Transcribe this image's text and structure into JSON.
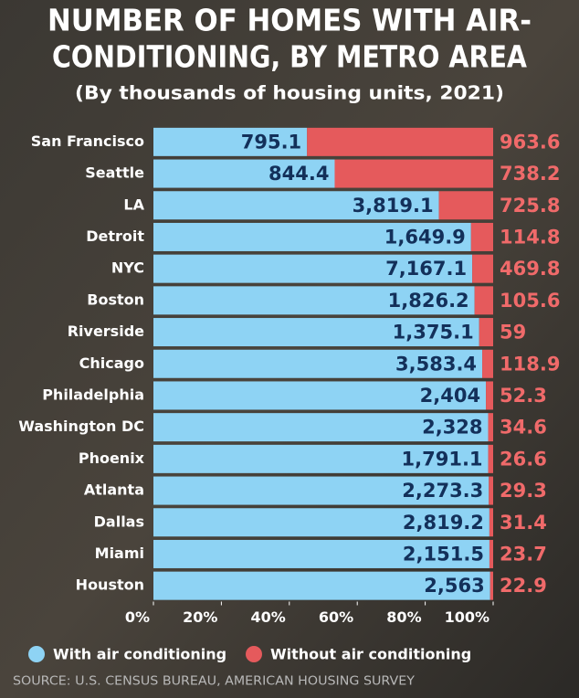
{
  "chart_data": {
    "type": "bar_100_stacked_horizontal",
    "title": [
      "NUMBER OF HOMES WITH AIR-",
      "CONDITIONING, BY METRO AREA"
    ],
    "subtitle": "(By thousands of housing units, 2021)",
    "categories": [
      "San Francisco",
      "Seattle",
      "LA",
      "Detroit",
      "NYC",
      "Boston",
      "Riverside",
      "Chicago",
      "Philadelphia",
      "Washington DC",
      "Phoenix",
      "Atlanta",
      "Dallas",
      "Miami",
      "Houston"
    ],
    "series": [
      {
        "name": "With air conditioning",
        "color": "#8ed3f4",
        "values": [
          795.1,
          844.4,
          3819.1,
          1649.9,
          7167.1,
          1826.2,
          1375.1,
          3583.4,
          2404,
          2328,
          1791.1,
          2273.3,
          2819.2,
          2151.5,
          2563
        ],
        "value_labels": [
          "795.1",
          "844.4",
          "3,819.1",
          "1,649.9",
          "7,167.1",
          "1,826.2",
          "1,375.1",
          "3,583.4",
          "2,404",
          "2,328",
          "1,791.1",
          "2,273.3",
          "2,819.2",
          "2,151.5",
          "2,563"
        ]
      },
      {
        "name": "Without air conditioning",
        "color": "#e55a5c",
        "values": [
          963.6,
          738.2,
          725.8,
          114.8,
          469.8,
          105.6,
          59,
          118.9,
          52.3,
          34.6,
          26.6,
          29.3,
          31.4,
          23.7,
          22.9
        ]
      }
    ],
    "xlim": [
      0,
      100
    ],
    "xticks": [
      {
        "value": 0,
        "label": "0%"
      },
      {
        "value": 20,
        "label": "20%"
      },
      {
        "value": 40,
        "label": "40%"
      },
      {
        "value": 60,
        "label": "60%"
      },
      {
        "value": 80,
        "label": "80%"
      },
      {
        "value": 100,
        "label": "100%"
      }
    ],
    "source": "SOURCE: U.S. CENSUS BUREAU, AMERICAN HOUSING SURVEY"
  }
}
